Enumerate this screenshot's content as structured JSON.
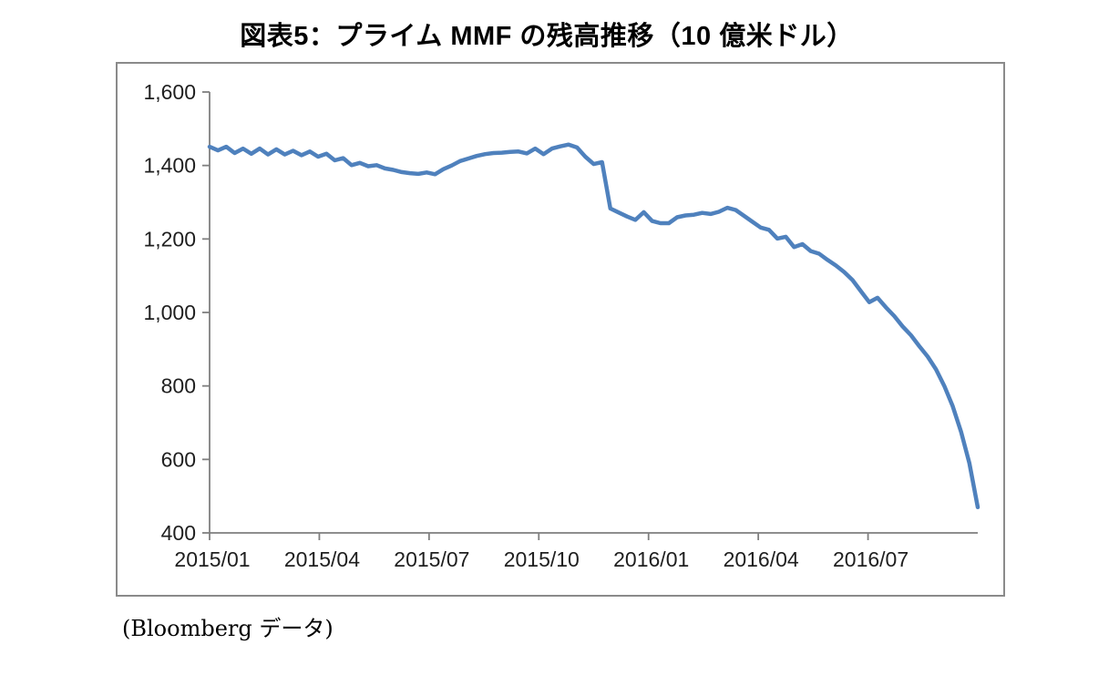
{
  "title": "図表5：プライム MMF の残高推移（10 億米ドル）",
  "source_note": "(Bloomberg データ)",
  "colors": {
    "line": "#4F81BD",
    "axis": "#7f7f7f",
    "frame_border": "#8a8a8a",
    "tick_label": "#1f1f1f",
    "background": "#ffffff"
  },
  "chart_data": {
    "type": "line",
    "title": "図表5：プライム MMF の残高推移（10 億米ドル）",
    "xlabel": "",
    "ylabel": "",
    "unit": "10億米ドル",
    "x_tick_labels": [
      "2015/01",
      "2015/04",
      "2015/07",
      "2015/10",
      "2016/01",
      "2016/04",
      "2016/07"
    ],
    "y_tick_labels": [
      "400",
      "600",
      "800",
      "1,000",
      "1,200",
      "1,400",
      "1,600"
    ],
    "y_tick_values": [
      400,
      600,
      800,
      1000,
      1200,
      1400,
      1600
    ],
    "ylim": [
      400,
      1600
    ],
    "x_range": "2015/01 - 2016/10",
    "sampling": "weekly",
    "grid": false,
    "legend": "none",
    "series": [
      {
        "name": "プライムMMF残高",
        "values": [
          1451,
          1441,
          1451,
          1434,
          1446,
          1432,
          1446,
          1430,
          1444,
          1430,
          1440,
          1428,
          1438,
          1424,
          1432,
          1414,
          1420,
          1401,
          1407,
          1398,
          1401,
          1392,
          1388,
          1382,
          1379,
          1377,
          1381,
          1376,
          1390,
          1400,
          1412,
          1419,
          1426,
          1431,
          1434,
          1435,
          1437,
          1438,
          1433,
          1446,
          1431,
          1446,
          1452,
          1457,
          1449,
          1424,
          1404,
          1409,
          1283,
          1272,
          1261,
          1252,
          1273,
          1249,
          1243,
          1243,
          1259,
          1264,
          1266,
          1271,
          1268,
          1274,
          1285,
          1279,
          1263,
          1247,
          1231,
          1225,
          1201,
          1206,
          1178,
          1186,
          1167,
          1160,
          1143,
          1128,
          1110,
          1088,
          1058,
          1028,
          1040,
          1014,
          990,
          962,
          938,
          908,
          880,
          845,
          800,
          745,
          675,
          590,
          470
        ]
      }
    ]
  }
}
